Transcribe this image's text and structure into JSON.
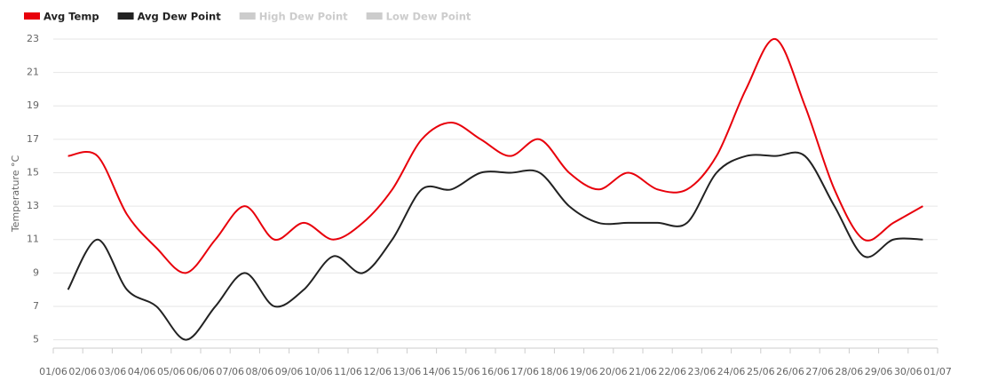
{
  "chart_data": {
    "type": "line",
    "y_axis_label": "Temperature °C",
    "categories": [
      "01/06",
      "02/06",
      "03/06",
      "04/06",
      "05/06",
      "06/06",
      "07/06",
      "08/06",
      "09/06",
      "10/06",
      "11/06",
      "12/06",
      "13/06",
      "14/06",
      "15/06",
      "16/06",
      "17/06",
      "18/06",
      "19/06",
      "20/06",
      "21/06",
      "22/06",
      "23/06",
      "24/06",
      "25/06",
      "26/06",
      "27/06",
      "28/06",
      "29/06",
      "30/06",
      "01/07"
    ],
    "series": [
      {
        "name": "Avg Temp",
        "color": "#e8000b",
        "visible": true,
        "values": [
          16,
          16,
          12.5,
          10.5,
          9,
          11,
          13,
          11,
          12,
          11,
          12,
          14,
          17,
          18,
          17,
          16,
          17,
          15,
          14,
          15,
          14,
          14,
          16,
          20,
          23,
          19,
          14,
          11,
          12,
          13,
          null
        ]
      },
      {
        "name": "Avg Dew Point",
        "color": "#222222",
        "visible": true,
        "values": [
          8,
          11,
          8,
          7,
          5,
          7,
          9,
          7,
          8,
          10,
          9,
          11,
          14,
          14,
          15,
          15,
          15,
          13,
          12,
          12,
          12,
          12,
          15,
          16,
          16,
          16,
          13,
          10,
          11,
          11,
          null
        ]
      },
      {
        "name": "High Dew Point",
        "color": "#cccccc",
        "visible": false
      },
      {
        "name": "Low Dew Point",
        "color": "#cccccc",
        "visible": false
      }
    ],
    "ylim": [
      4.5,
      23
    ],
    "yticks": [
      5,
      7,
      9,
      11,
      13,
      15,
      17,
      19,
      21,
      23
    ],
    "grid": true
  }
}
